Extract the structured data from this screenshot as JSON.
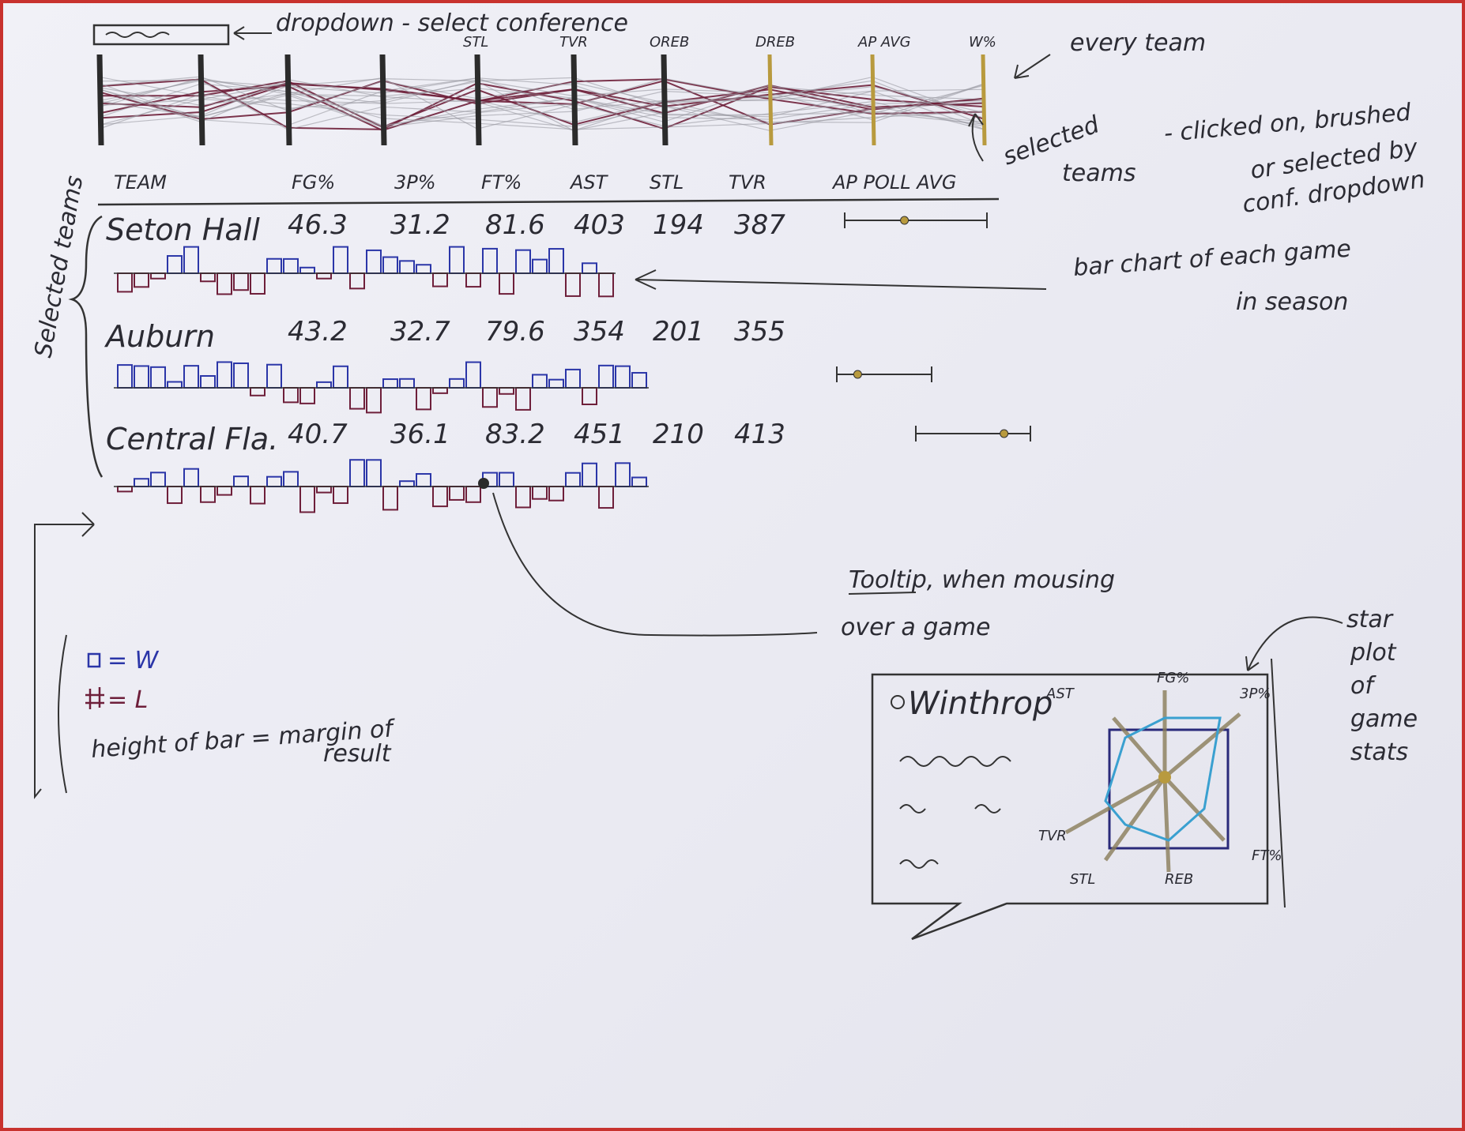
{
  "header": {
    "dropdown_note": "dropdown - select conference",
    "every_team_note": "every team",
    "selected_note_1": "selected",
    "selected_note_2": "teams",
    "selected_note_3": "- clicked on, brushed",
    "selected_note_4": "or selected by",
    "selected_note_5": "conf. dropdown"
  },
  "parallel_axes": [
    "",
    "",
    "",
    "STL",
    "TVR",
    "OREB",
    "DREB",
    "AP AVG",
    "W%"
  ],
  "columns": [
    "TEAM",
    "FG%",
    "3P%",
    "FT%",
    "AST",
    "STL",
    "TVR",
    "AP POLL AVG"
  ],
  "teams": [
    {
      "name": "Seton Hall",
      "stats": [
        "46.3",
        "31.2",
        "81.6",
        "403",
        "194",
        "387"
      ],
      "ap_avg": 0.42
    },
    {
      "name": "Auburn",
      "stats": [
        "43.2",
        "32.7",
        "79.6",
        "354",
        "201",
        "355"
      ],
      "ap_avg": 0.22
    },
    {
      "name": "Central Fla.",
      "stats": [
        "40.7",
        "36.1",
        "83.2",
        "451",
        "210",
        "413"
      ],
      "ap_avg": 0.77
    }
  ],
  "selected_teams_label": "Selected teams",
  "bar_chart_note_1": "bar chart of each game",
  "bar_chart_note_2": "in season",
  "legend": {
    "win": "= W",
    "loss": "= L",
    "height": "height of bar = margin of",
    "height2": "result"
  },
  "tooltip": {
    "note_1": "Tooltip, when mousing",
    "note_2": "over a game",
    "opponent": "Winthrop",
    "star_labels": [
      "FG%",
      "3P%",
      "FT%",
      "REB",
      "STL",
      "TVR",
      "AST"
    ],
    "star_note": [
      "star",
      "plot",
      "of",
      "game",
      "stats"
    ]
  },
  "colors": {
    "win": "#2b36a8",
    "loss": "#6e1f3a",
    "ink": "#2b2b33",
    "gold": "#b89a3e",
    "cyan": "#3aa0d0"
  }
}
